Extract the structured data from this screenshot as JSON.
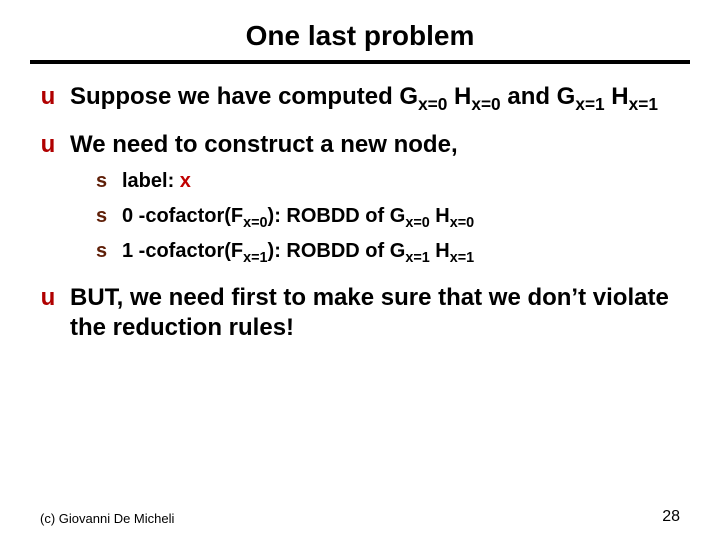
{
  "title": {
    "text": "One last problem",
    "fontsize": 28,
    "color": "#000000"
  },
  "rule": {
    "color": "#000000",
    "thickness": 4
  },
  "body_fontsize_l1": 24,
  "body_fontsize_l2": 20,
  "bullet_l1_color": "#b00000",
  "bullet_l2_color": "#5f1f08",
  "accent_red": "#c00000",
  "text_color": "#000000",
  "spacing": {
    "before_l1": 18,
    "before_l2": 8,
    "after_block": 6,
    "indent_l2": 56
  },
  "items": [
    {
      "type": "l1",
      "prefix": "Suppose we have computed ",
      "math": [
        {
          "t": "G",
          "sub": "x=0"
        },
        {
          "t": " H",
          "sub": "x=0"
        },
        {
          "t": " and  G",
          "sub": "x=1"
        },
        {
          "t": " H",
          "sub": "x=1"
        }
      ]
    },
    {
      "type": "l1",
      "prefix": "We need to construct a new node,",
      "math": []
    },
    {
      "type": "l2",
      "prefix": "label: ",
      "accent": "x"
    },
    {
      "type": "l2",
      "prefix": "0 -cofactor(F",
      "sub1": "x=0",
      "mid": "): ROBDD of G",
      "sub2": "x=0",
      "mid2": " H",
      "sub3": "x=0"
    },
    {
      "type": "l2",
      "prefix": "1 -cofactor(F",
      "sub1": "x=1",
      "mid": "): ROBDD of G",
      "sub2": "x=1",
      "mid2": " H",
      "sub3": "x=1"
    },
    {
      "type": "l1",
      "prefix": "BUT, we need first to make sure that we don’t violate the reduction rules!",
      "math": []
    }
  ],
  "footer": {
    "text": "(c)  Giovanni De Micheli",
    "fontsize": 13,
    "color": "#000000"
  },
  "pagenum": {
    "text": "28",
    "fontsize": 16,
    "color": "#000000"
  },
  "bullets": {
    "l1_glyph": "u",
    "l2_glyph": "s"
  }
}
